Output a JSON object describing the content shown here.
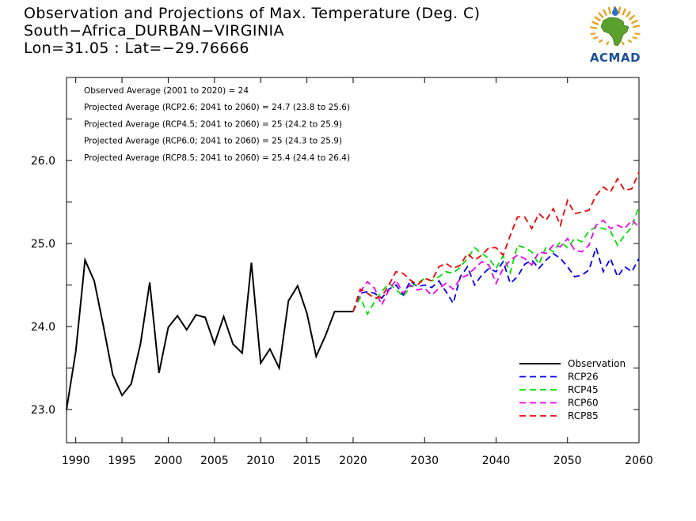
{
  "header": {
    "title": "Observation and Projections of Max. Temperature (Deg. C)",
    "station": "South−Africa_DURBAN−VIRGINIA",
    "coords": "Lon=31.05 : Lat=−29.76666"
  },
  "logo": {
    "text": "ACMAD",
    "brand_blue": "#1d4f9c",
    "brand_gold": "#e7a21b",
    "brand_green": "#5aa02c"
  },
  "chart_data": {
    "type": "line",
    "title": "Observation and Projections of Max. Temperature (Deg. C)",
    "xlabel": "",
    "ylabel": "",
    "xlim": [
      1989,
      2060
    ],
    "ylim": [
      22.6,
      27.0
    ],
    "x_ticks": [
      "1990",
      "1995",
      "2000",
      "2005",
      "2010",
      "2015",
      "2020",
      "2030",
      "2040",
      "2050",
      "2060"
    ],
    "y_ticks": [
      "23.0",
      "24.0",
      "25.0",
      "26.0"
    ],
    "legend_position": "bottom-right",
    "annotations": [
      "Observed Average (2001 to 2020) = 24",
      "Projected Average (RCP2.6; 2041 to 2060) = 24.7 (23.8 to 25.6)",
      "Projected Average (RCP4.5; 2041 to 2060) = 25 (24.2 to 25.9)",
      "Projected Average (RCP6.0; 2041 to 2060) = 25 (24.3 to 25.9)",
      "Projected Average (RCP8.5; 2041 to 2060) = 25.4 (24.4 to 26.4)"
    ],
    "series": [
      {
        "name": "Observation",
        "color": "#000000",
        "dash": "solid",
        "x": [
          1989,
          1990,
          1991,
          1992,
          1993,
          1994,
          1995,
          1996,
          1997,
          1998,
          1999,
          2000,
          2001,
          2002,
          2003,
          2004,
          2005,
          2006,
          2007,
          2008,
          2009,
          2010,
          2011,
          2012,
          2013,
          2014,
          2015,
          2016,
          2017,
          2018,
          2019,
          2020
        ],
        "values": [
          23.0,
          23.7,
          24.8,
          24.55,
          24.0,
          23.42,
          23.17,
          23.31,
          23.79,
          24.53,
          23.44,
          23.99,
          24.13,
          23.96,
          24.14,
          24.11,
          23.79,
          24.12,
          23.79,
          23.68,
          24.77,
          23.56,
          23.73,
          23.5,
          24.31,
          24.49,
          24.16,
          23.64,
          23.89,
          24.18,
          24.18,
          24.18
        ]
      },
      {
        "name": "RCP26",
        "color": "#0000ee",
        "dash": "dashed",
        "x": [
          2020,
          2021,
          2022,
          2023,
          2024,
          2025,
          2026,
          2027,
          2028,
          2029,
          2030,
          2031,
          2032,
          2033,
          2034,
          2035,
          2036,
          2037,
          2038,
          2039,
          2040,
          2041,
          2042,
          2043,
          2044,
          2045,
          2046,
          2047,
          2048,
          2049,
          2050,
          2051,
          2052,
          2053,
          2054,
          2055,
          2056,
          2057,
          2058,
          2059,
          2060
        ],
        "values": [
          24.18,
          24.4,
          24.42,
          24.4,
          24.34,
          24.45,
          24.5,
          24.38,
          24.55,
          24.48,
          24.5,
          24.47,
          24.55,
          24.42,
          24.28,
          24.6,
          24.72,
          24.5,
          24.62,
          24.7,
          24.66,
          24.78,
          24.52,
          24.6,
          24.75,
          24.8,
          24.7,
          24.8,
          24.88,
          24.82,
          24.72,
          24.6,
          24.62,
          24.68,
          24.95,
          24.66,
          24.82,
          24.6,
          24.72,
          24.66,
          24.82
        ]
      },
      {
        "name": "RCP45",
        "color": "#00e000",
        "dash": "dashed",
        "x": [
          2020,
          2021,
          2022,
          2023,
          2024,
          2025,
          2026,
          2027,
          2028,
          2029,
          2030,
          2031,
          2032,
          2033,
          2034,
          2035,
          2036,
          2037,
          2038,
          2039,
          2040,
          2041,
          2042,
          2043,
          2044,
          2045,
          2046,
          2047,
          2048,
          2049,
          2050,
          2051,
          2052,
          2053,
          2054,
          2055,
          2056,
          2057,
          2058,
          2059,
          2060
        ],
        "values": [
          24.18,
          24.35,
          24.15,
          24.3,
          24.42,
          24.52,
          24.45,
          24.36,
          24.48,
          24.52,
          24.58,
          24.55,
          24.6,
          24.66,
          24.64,
          24.72,
          24.82,
          24.95,
          24.88,
          24.82,
          24.7,
          24.85,
          24.65,
          24.98,
          24.95,
          24.9,
          24.75,
          24.96,
          24.9,
          25.02,
          24.95,
          25.06,
          25.02,
          25.15,
          25.2,
          25.18,
          25.15,
          24.98,
          25.1,
          25.2,
          25.45
        ]
      },
      {
        "name": "RCP60",
        "color": "#ee00ee",
        "dash": "dashed",
        "x": [
          2020,
          2021,
          2022,
          2023,
          2024,
          2025,
          2026,
          2027,
          2028,
          2029,
          2030,
          2031,
          2032,
          2033,
          2034,
          2035,
          2036,
          2037,
          2038,
          2039,
          2040,
          2041,
          2042,
          2043,
          2044,
          2045,
          2046,
          2047,
          2048,
          2049,
          2050,
          2051,
          2052,
          2053,
          2054,
          2055,
          2056,
          2057,
          2058,
          2059,
          2060
        ],
        "values": [
          24.18,
          24.42,
          24.54,
          24.46,
          24.26,
          24.44,
          24.56,
          24.4,
          24.5,
          24.44,
          24.46,
          24.38,
          24.46,
          24.52,
          24.45,
          24.58,
          24.62,
          24.7,
          24.78,
          24.74,
          24.52,
          24.7,
          24.8,
          24.86,
          24.82,
          24.74,
          24.9,
          24.88,
          24.98,
          24.96,
          25.06,
          24.92,
          24.9,
          24.98,
          25.22,
          25.28,
          25.18,
          25.22,
          25.18,
          25.28,
          25.2
        ]
      },
      {
        "name": "RCP85",
        "color": "#ee0000",
        "dash": "dashed",
        "x": [
          2020,
          2021,
          2022,
          2023,
          2024,
          2025,
          2026,
          2027,
          2028,
          2029,
          2030,
          2031,
          2032,
          2033,
          2034,
          2035,
          2036,
          2037,
          2038,
          2039,
          2040,
          2041,
          2042,
          2043,
          2044,
          2045,
          2046,
          2047,
          2048,
          2049,
          2050,
          2051,
          2052,
          2053,
          2054,
          2055,
          2056,
          2057,
          2058,
          2059,
          2060
        ],
        "values": [
          24.18,
          24.45,
          24.4,
          24.34,
          24.36,
          24.5,
          24.66,
          24.64,
          24.56,
          24.5,
          24.58,
          24.55,
          24.72,
          24.76,
          24.7,
          24.74,
          24.88,
          24.8,
          24.86,
          24.95,
          24.95,
          24.86,
          25.1,
          25.32,
          25.32,
          25.18,
          25.36,
          25.28,
          25.42,
          25.22,
          25.52,
          25.36,
          25.38,
          25.4,
          25.58,
          25.68,
          25.62,
          25.78,
          25.64,
          25.66,
          25.86
        ]
      }
    ]
  }
}
